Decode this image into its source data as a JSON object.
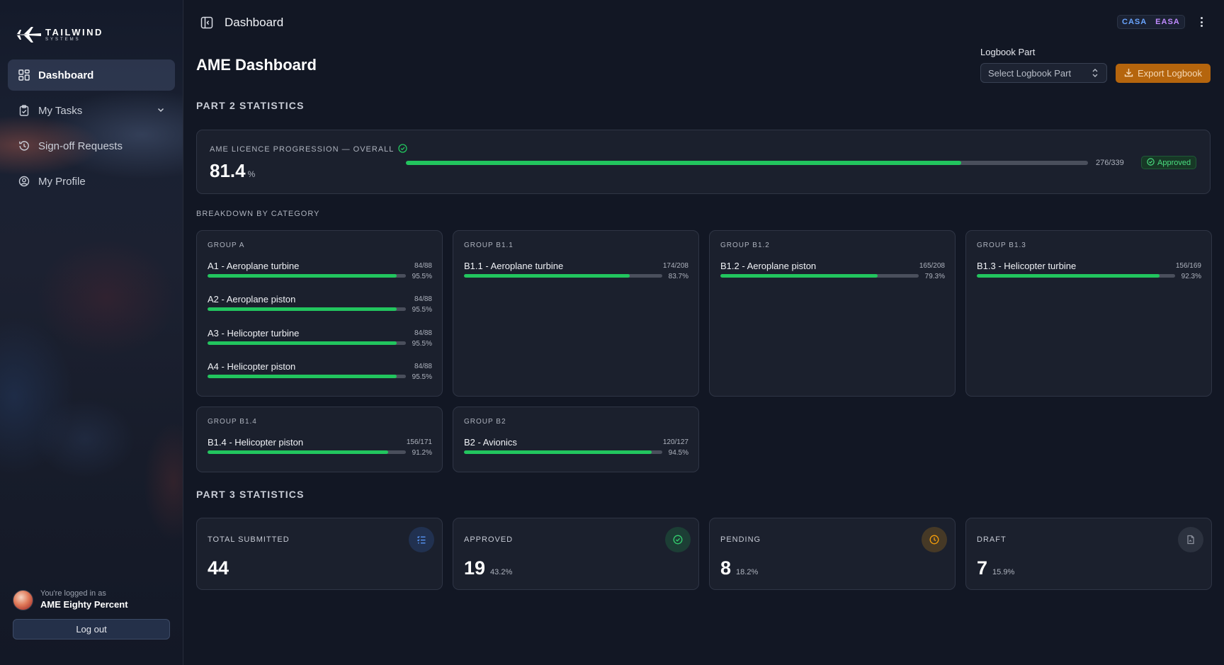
{
  "sidebar": {
    "logo": {
      "main": "TAILWIND",
      "sub": "SYSTEMS"
    },
    "items": [
      {
        "label": "Dashboard",
        "icon": "grid-icon",
        "active": true
      },
      {
        "label": "My Tasks",
        "icon": "clipboard-icon",
        "has_chevron": true
      },
      {
        "label": "Sign-off Requests",
        "icon": "history-icon"
      },
      {
        "label": "My Profile",
        "icon": "user-circle-icon"
      }
    ],
    "user": {
      "logged_in_as": "You're logged in as",
      "name": "AME Eighty Percent"
    },
    "logout_label": "Log out"
  },
  "topbar": {
    "title": "Dashboard",
    "badges": [
      "CASA",
      "EASA"
    ]
  },
  "header": {
    "title": "AME Dashboard",
    "logbook_label": "Logbook Part",
    "logbook_placeholder": "Select Logbook Part",
    "export_label": "Export Logbook"
  },
  "part2": {
    "title": "PART 2 STATISTICS",
    "overall": {
      "label": "AME LICENCE PROGRESSION — OVERALL",
      "value": "81.4",
      "unit": "%",
      "progress": 0.814,
      "count": "276/339",
      "status": "Approved"
    },
    "breakdown_label": "BREAKDOWN BY CATEGORY",
    "groups": [
      {
        "name": "GROUP A",
        "rows": [
          {
            "label": "A1 - Aeroplane turbine",
            "count": "84/88",
            "pct": "95.5%",
            "progress": 0.955
          },
          {
            "label": "A2 - Aeroplane piston",
            "count": "84/88",
            "pct": "95.5%",
            "progress": 0.955
          },
          {
            "label": "A3 - Helicopter turbine",
            "count": "84/88",
            "pct": "95.5%",
            "progress": 0.955
          },
          {
            "label": "A4 - Helicopter piston",
            "count": "84/88",
            "pct": "95.5%",
            "progress": 0.955
          }
        ]
      },
      {
        "name": "GROUP B1.1",
        "rows": [
          {
            "label": "B1.1 - Aeroplane turbine",
            "count": "174/208",
            "pct": "83.7%",
            "progress": 0.837
          }
        ]
      },
      {
        "name": "GROUP B1.2",
        "rows": [
          {
            "label": "B1.2 - Aeroplane piston",
            "count": "165/208",
            "pct": "79.3%",
            "progress": 0.793
          }
        ]
      },
      {
        "name": "GROUP B1.3",
        "rows": [
          {
            "label": "B1.3 - Helicopter turbine",
            "count": "156/169",
            "pct": "92.3%",
            "progress": 0.923
          }
        ]
      },
      {
        "name": "GROUP B1.4",
        "rows": [
          {
            "label": "B1.4 - Helicopter piston",
            "count": "156/171",
            "pct": "91.2%",
            "progress": 0.912
          }
        ]
      },
      {
        "name": "GROUP B2",
        "rows": [
          {
            "label": "B2 - Avionics",
            "count": "120/127",
            "pct": "94.5%",
            "progress": 0.945
          }
        ]
      }
    ]
  },
  "part3": {
    "title": "PART 3 STATISTICS",
    "stats": [
      {
        "label": "TOTAL SUBMITTED",
        "value": "44",
        "sub": "",
        "icon": "list-check-icon",
        "color": "#3b82f6"
      },
      {
        "label": "APPROVED",
        "value": "19",
        "sub": "43.2%",
        "icon": "check-circle-icon",
        "color": "#22c55e"
      },
      {
        "label": "PENDING",
        "value": "8",
        "sub": "18.2%",
        "icon": "clock-icon",
        "color": "#f59e0b"
      },
      {
        "label": "DRAFT",
        "value": "7",
        "sub": "15.9%",
        "icon": "file-icon",
        "color": "#6b7280"
      }
    ]
  },
  "colors": {
    "accent_green": "#22c55e",
    "export_orange": "#b5650d",
    "casa_blue": "#6aa5ff",
    "easa_purple": "#c08bff"
  }
}
